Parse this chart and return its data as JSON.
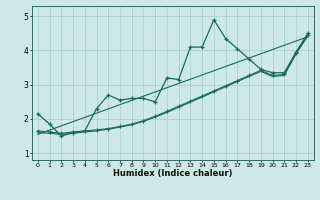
{
  "xlabel": "Humidex (Indice chaleur)",
  "bg_color": "#cce8e8",
  "grid_color": "#aacccc",
  "line_color": "#1a6b5a",
  "xlim": [
    -0.5,
    23.5
  ],
  "ylim": [
    0.8,
    5.3
  ],
  "xticks": [
    0,
    1,
    2,
    3,
    4,
    5,
    6,
    7,
    8,
    9,
    10,
    11,
    12,
    13,
    14,
    15,
    16,
    17,
    18,
    19,
    20,
    21,
    22,
    23
  ],
  "yticks": [
    1,
    2,
    3,
    4,
    5
  ],
  "series1_x": [
    0,
    1,
    2,
    3,
    4,
    5,
    6,
    7,
    8,
    9,
    10,
    11,
    12,
    13,
    14,
    15,
    16,
    17,
    18,
    19,
    20,
    21,
    22,
    23
  ],
  "series1_y": [
    2.15,
    1.85,
    1.5,
    1.6,
    1.65,
    2.3,
    2.7,
    2.55,
    2.6,
    2.6,
    2.5,
    3.2,
    3.15,
    4.1,
    4.1,
    4.9,
    4.35,
    4.05,
    3.75,
    3.45,
    3.35,
    3.35,
    3.95,
    4.5
  ],
  "series2_x": [
    0,
    1,
    2,
    3,
    4,
    5,
    6,
    7,
    8,
    9,
    10,
    11,
    12,
    13,
    14,
    15,
    16,
    17,
    18,
    19,
    20,
    21,
    22,
    23
  ],
  "series2_y": [
    1.65,
    1.62,
    1.58,
    1.62,
    1.65,
    1.68,
    1.72,
    1.78,
    1.85,
    1.95,
    2.08,
    2.22,
    2.37,
    2.52,
    2.67,
    2.82,
    2.97,
    3.12,
    3.27,
    3.42,
    3.27,
    3.3,
    3.93,
    4.45
  ],
  "series3_x": [
    0,
    1,
    2,
    3,
    4,
    5,
    6,
    7,
    8,
    9,
    10,
    11,
    12,
    13,
    14,
    15,
    16,
    17,
    18,
    19,
    20,
    21,
    22,
    23
  ],
  "series3_y": [
    1.6,
    1.58,
    1.55,
    1.58,
    1.62,
    1.65,
    1.7,
    1.76,
    1.83,
    1.93,
    2.05,
    2.19,
    2.34,
    2.49,
    2.64,
    2.79,
    2.94,
    3.09,
    3.24,
    3.39,
    3.24,
    3.27,
    3.9,
    4.42
  ],
  "series4_x": [
    0,
    23
  ],
  "series4_y": [
    1.55,
    4.4
  ]
}
